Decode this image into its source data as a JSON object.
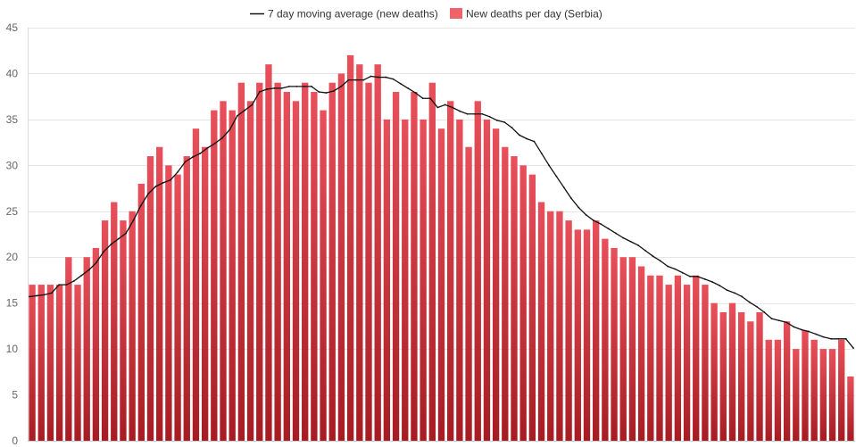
{
  "chart_data": {
    "type": "bar",
    "ylim": [
      0,
      45
    ],
    "y_ticks": [
      0,
      5,
      10,
      15,
      20,
      25,
      30,
      35,
      40,
      45
    ],
    "grid": true,
    "legend_placement": "top-center",
    "colors": {
      "bar_top": "#e8505b",
      "bar_bottom": "#a61c22",
      "line": "#111111",
      "grid": "#e6e6e6",
      "legend_bar_swatch": "#f06269"
    },
    "series": [
      {
        "name": "7 day moving average (new deaths)",
        "kind": "line",
        "values": [
          15.7,
          15.8,
          15.9,
          16.1,
          17.0,
          17.0,
          17.4,
          18.0,
          18.6,
          19.4,
          20.6,
          21.4,
          22.0,
          22.6,
          24.0,
          25.6,
          26.9,
          27.7,
          28.1,
          28.4,
          29.3,
          30.4,
          30.9,
          31.3,
          31.9,
          32.4,
          33.0,
          33.9,
          35.4,
          36.0,
          36.6,
          38.0,
          38.3,
          38.4,
          38.4,
          38.6,
          38.6,
          38.6,
          38.6,
          38.0,
          37.9,
          38.1,
          38.6,
          39.3,
          39.3,
          39.3,
          39.7,
          39.6,
          39.6,
          39.4,
          38.9,
          38.4,
          37.9,
          37.3,
          37.3,
          36.3,
          36.6,
          36.3,
          35.9,
          35.6,
          35.6,
          35.6,
          35.3,
          34.9,
          34.7,
          34.1,
          33.3,
          32.9,
          32.6,
          31.3,
          30.0,
          28.8,
          27.6,
          26.4,
          25.4,
          24.6,
          24.0,
          23.6,
          23.1,
          22.6,
          22.1,
          21.7,
          21.3,
          20.7,
          20.1,
          19.6,
          19.0,
          18.7,
          18.3,
          17.9,
          17.9,
          17.6,
          17.3,
          16.9,
          16.4,
          16.1,
          15.7,
          15.1,
          14.6,
          14.0,
          13.3,
          13.1,
          12.9,
          12.4,
          12.1,
          11.9,
          11.6,
          11.3,
          11.1,
          11.1,
          11.1,
          10.1
        ]
      },
      {
        "name": "New deaths per day (Serbia)",
        "kind": "bar",
        "values": [
          17,
          17,
          17,
          17,
          20,
          17,
          20,
          21,
          24,
          26,
          24,
          25,
          28,
          31,
          32,
          30,
          29,
          31,
          34,
          32,
          36,
          37,
          36,
          39,
          37,
          39,
          41,
          39,
          38,
          37,
          39,
          38,
          36,
          39,
          40,
          42,
          41,
          39,
          41,
          35,
          38,
          35,
          38,
          35,
          39,
          34,
          37,
          35,
          32,
          37,
          35,
          34,
          32,
          31,
          30,
          29,
          26,
          25,
          25,
          24,
          23,
          23,
          24,
          22,
          21,
          20,
          20,
          19,
          18,
          18,
          17,
          18,
          17,
          18,
          17,
          15,
          14,
          15,
          14,
          13,
          14,
          11,
          11,
          13,
          10,
          12,
          11,
          10,
          10,
          11,
          7
        ]
      }
    ]
  }
}
